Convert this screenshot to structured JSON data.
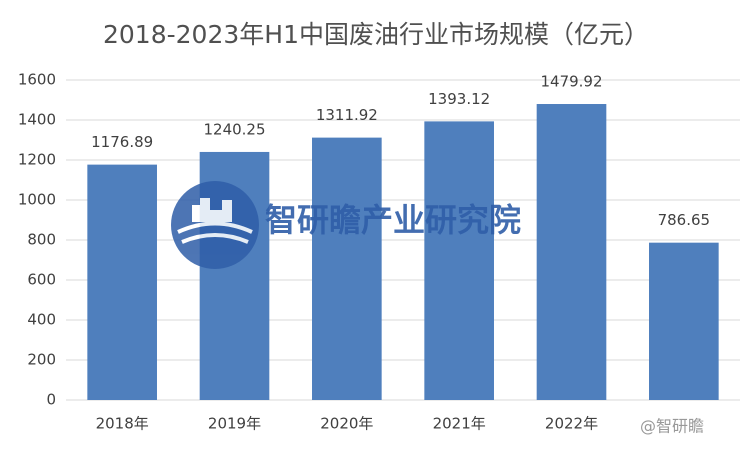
{
  "chart_data": {
    "type": "bar",
    "title": "2018-2023年H1中国废油行业市场规模（亿元）",
    "categories": [
      "2018年",
      "2019年",
      "2020年",
      "2021年",
      "2022年",
      null
    ],
    "values": [
      1176.89,
      1240.25,
      1311.92,
      1393.12,
      1479.92,
      786.65
    ],
    "color": "#4f7fbd",
    "ylim": [
      0,
      1600
    ],
    "yticks": [
      0,
      200,
      400,
      600,
      800,
      1000,
      1200,
      1400,
      1600
    ],
    "grid": true,
    "watermark": "智研瞻产业研究院",
    "source_mark": "@智研瞻"
  }
}
